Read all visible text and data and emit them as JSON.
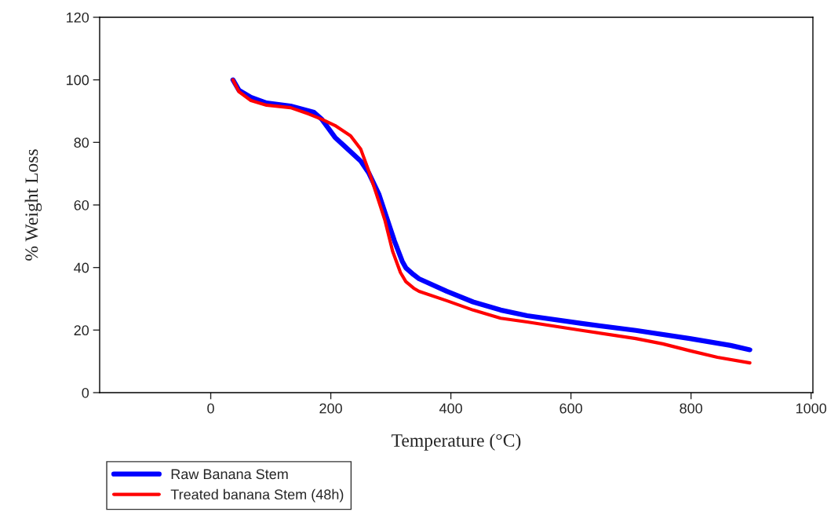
{
  "chart_data": {
    "type": "line",
    "xlabel": "Temperature (°C)",
    "ylabel": "% Weight Loss",
    "xlim": [
      -185,
      1003
    ],
    "xticks": [
      0,
      200,
      400,
      600,
      800,
      1000
    ],
    "ylim": [
      0,
      120
    ],
    "yticks": [
      0,
      20,
      40,
      60,
      80,
      100,
      120
    ],
    "grid": false,
    "legend": "bottom left",
    "marker": "none",
    "line_style": "solid",
    "series": [
      {
        "name": "Raw Banana Stem",
        "color": "#0000ff",
        "x": [
          37,
          47,
          67,
          93,
          133,
          172,
          185,
          207,
          224,
          250,
          263,
          280,
          293,
          306,
          319,
          325,
          338,
          347,
          393,
          437,
          483,
          527,
          618,
          708,
          798,
          866,
          898
        ],
        "values": [
          100,
          96.7,
          94.4,
          92.6,
          91.6,
          89.6,
          87.4,
          81.6,
          78.6,
          74,
          70.3,
          63.5,
          56,
          48.5,
          42,
          39.9,
          37.7,
          36.4,
          32.4,
          29,
          26.4,
          24.6,
          22.1,
          19.9,
          17.3,
          15.1,
          13.7
        ]
      },
      {
        "name": "Treated banana Stem (48h)",
        "color": "#ff0000",
        "x": [
          37,
          47,
          67,
          93,
          133,
          163,
          185,
          207,
          233,
          250,
          263,
          276,
          290,
          303,
          316,
          325,
          338,
          347,
          393,
          437,
          483,
          527,
          618,
          708,
          753,
          798,
          844,
          898
        ],
        "values": [
          100,
          96.2,
          93.4,
          91.9,
          91.1,
          89.1,
          87.4,
          85.4,
          82.1,
          77.8,
          71,
          63.5,
          55.2,
          45.2,
          38.4,
          35.5,
          33.4,
          32.4,
          29.4,
          26.4,
          23.8,
          22.6,
          19.9,
          17.3,
          15.6,
          13.4,
          11.3,
          9.5
        ]
      }
    ]
  }
}
